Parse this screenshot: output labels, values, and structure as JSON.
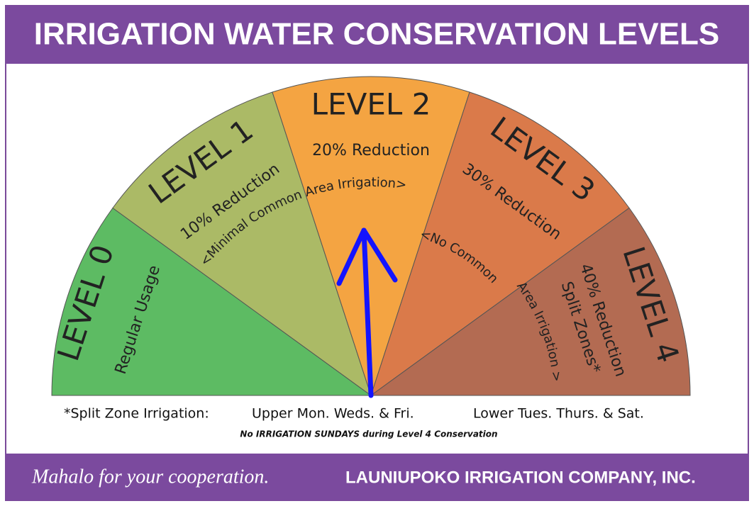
{
  "header": {
    "title": "IRRIGATION WATER CONSERVATION LEVELS"
  },
  "levels": [
    {
      "title": "LEVEL 0",
      "lines": [
        "Regular Usage"
      ]
    },
    {
      "title": "LEVEL 1",
      "lines": [
        "10% Reduction"
      ]
    },
    {
      "title": "LEVEL 2",
      "lines": [
        "20% Reduction"
      ]
    },
    {
      "title": "LEVEL 3",
      "lines": [
        "30% Reduction"
      ]
    },
    {
      "title": "LEVEL 4",
      "lines": [
        "40% Reduction",
        "Split Zones*"
      ]
    }
  ],
  "notes": [
    "<Minimal Common Area Irrigation>",
    "<No Common",
    "Area Irrigation >"
  ],
  "split_zone": {
    "label": "*Split Zone Irrigation:",
    "upper": "Upper Mon. Weds. & Fri.",
    "lower": "Lower Tues. Thurs. & Sat."
  },
  "sunday_note": "No IRRIGATION SUNDAYS during Level 4 Conservation",
  "footer": {
    "thanks": "Mahalo for your cooperation.",
    "company": "LAUNIUPOKO IRRIGATION COMPANY, INC."
  }
}
